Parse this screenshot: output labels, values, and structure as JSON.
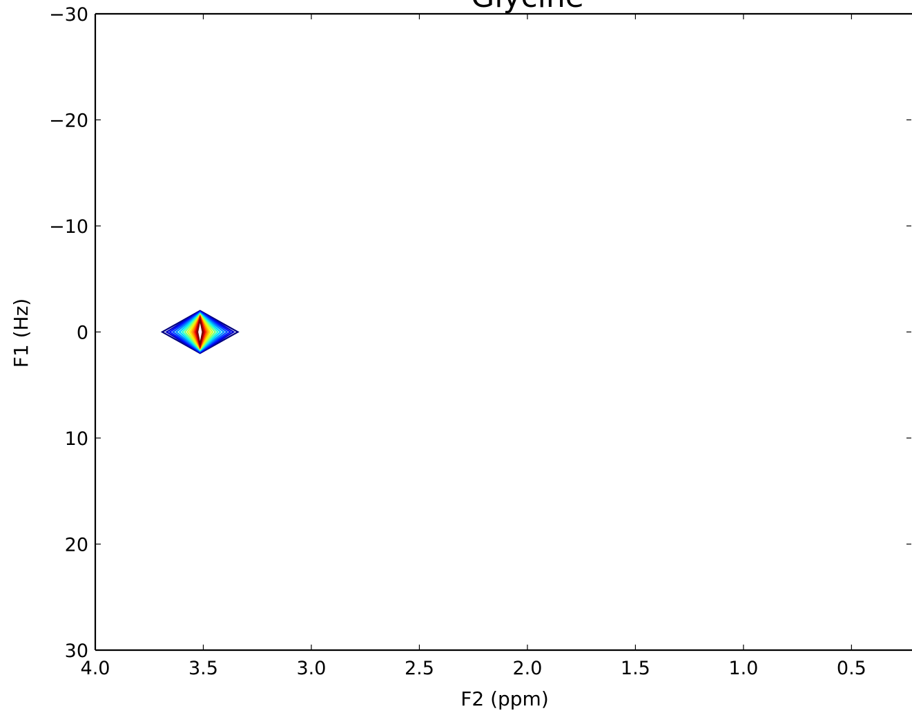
{
  "chart_data": {
    "type": "contour",
    "title": "Glycine",
    "xlabel": "F2 (ppm)",
    "ylabel": "F1 (Hz)",
    "xlim": [
      4.0,
      0.22
    ],
    "ylim": [
      30,
      -30
    ],
    "x_inverted": true,
    "y_inverted": true,
    "xticks": [
      4.0,
      3.5,
      3.0,
      2.5,
      2.0,
      1.5,
      1.0,
      0.5
    ],
    "xtick_labels": [
      "4.0",
      "3.5",
      "3.0",
      "2.5",
      "2.0",
      "1.5",
      "1.0",
      "0.5"
    ],
    "yticks": [
      -30,
      -20,
      -10,
      0,
      10,
      20,
      30
    ],
    "ytick_labels": [
      "−30",
      "−20",
      "−10",
      "0",
      "10",
      "20",
      "30"
    ],
    "grid": false,
    "colormap": "jet",
    "peaks": [
      {
        "x_center": 3.515,
        "y_center": 0,
        "contours": [
          {
            "half_width_x": 0.175,
            "half_width_y": 2.0,
            "color": "#00007f"
          },
          {
            "half_width_x": 0.155,
            "half_width_y": 1.95,
            "color": "#0000c8"
          },
          {
            "half_width_x": 0.14,
            "half_width_y": 1.9,
            "color": "#0010ff"
          },
          {
            "half_width_x": 0.125,
            "half_width_y": 1.85,
            "color": "#0050ff"
          },
          {
            "half_width_x": 0.11,
            "half_width_y": 1.8,
            "color": "#0090ff"
          },
          {
            "half_width_x": 0.095,
            "half_width_y": 1.75,
            "color": "#00d4ff"
          },
          {
            "half_width_x": 0.082,
            "half_width_y": 1.7,
            "color": "#29ffce"
          },
          {
            "half_width_x": 0.07,
            "half_width_y": 1.65,
            "color": "#7dff7a"
          },
          {
            "half_width_x": 0.058,
            "half_width_y": 1.6,
            "color": "#ceff29"
          },
          {
            "half_width_x": 0.047,
            "half_width_y": 1.55,
            "color": "#ffe500"
          },
          {
            "half_width_x": 0.038,
            "half_width_y": 1.5,
            "color": "#ffa400"
          },
          {
            "half_width_x": 0.03,
            "half_width_y": 1.45,
            "color": "#ff6200"
          },
          {
            "half_width_x": 0.023,
            "half_width_y": 1.4,
            "color": "#fa1000"
          },
          {
            "half_width_x": 0.017,
            "half_width_y": 1.3,
            "color": "#b20000"
          },
          {
            "half_width_x": 0.012,
            "half_width_y": 1.2,
            "color": "#7f0000"
          }
        ]
      }
    ]
  }
}
